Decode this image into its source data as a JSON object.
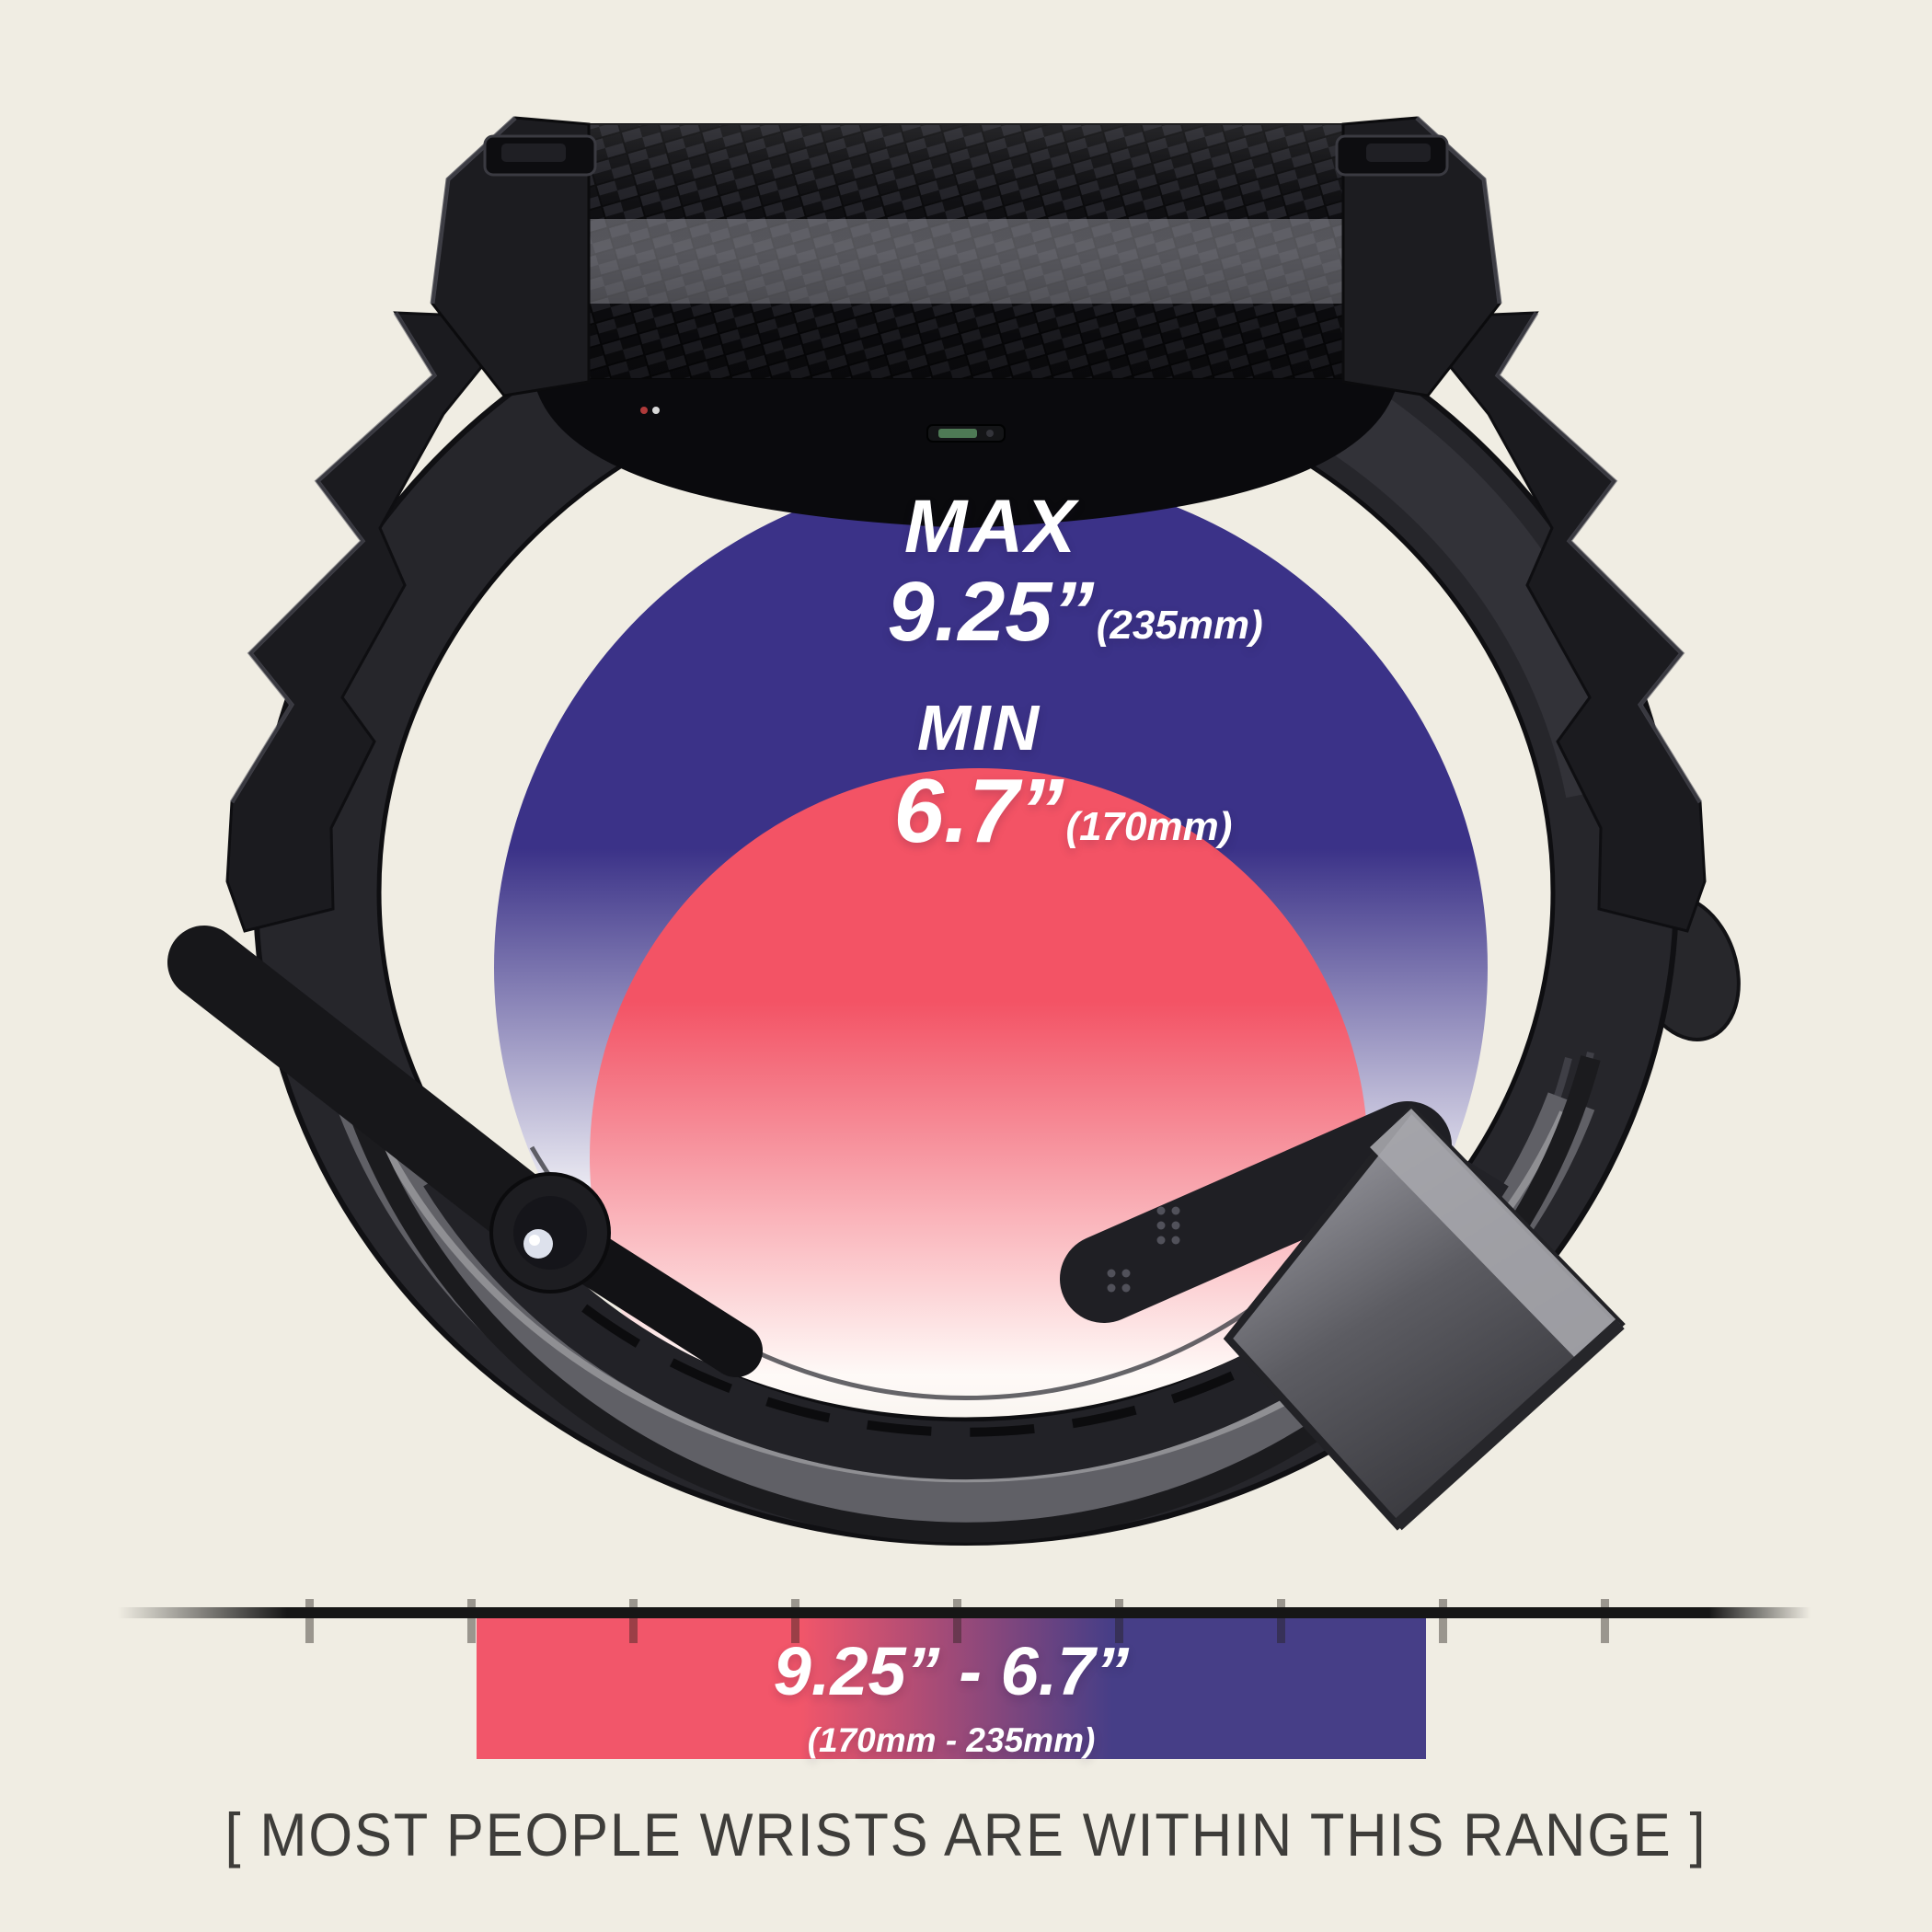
{
  "background": {
    "color": "#f0ede3"
  },
  "size_labels": {
    "max": {
      "title": "MAX",
      "value": "9.25”",
      "metric": "(235mm)"
    },
    "min": {
      "title": "MIN",
      "value": "6.7”",
      "metric": "(170mm)"
    }
  },
  "gauge": {
    "range_value": "9.25” - 6.7”",
    "range_metric": "(170mm - 235mm)",
    "tick_count": 9
  },
  "caption": "[ MOST PEOPLE WRISTS ARE WITHIN THIS RANGE ]",
  "colors": {
    "outer_circle": "#3b3288",
    "inner_circle": "#f35365",
    "bar_gradient_left": "#f2566a",
    "bar_gradient_right": "#463e87",
    "ruler_line": "#161616",
    "caption_text": "#3e3d3a"
  },
  "illustration": {
    "name": "rugged-smartwatch-band-side-view",
    "parts": [
      "watch-case-carbon-panel",
      "case-bumper-left",
      "case-bumper-right",
      "case-button-left",
      "case-button-right",
      "watch-back",
      "charging-port",
      "zigzag-strap-left",
      "zigzag-strap-right",
      "band-loop",
      "inner-strap",
      "folding-clasp",
      "clasp-pin",
      "buckle-keeper"
    ]
  }
}
